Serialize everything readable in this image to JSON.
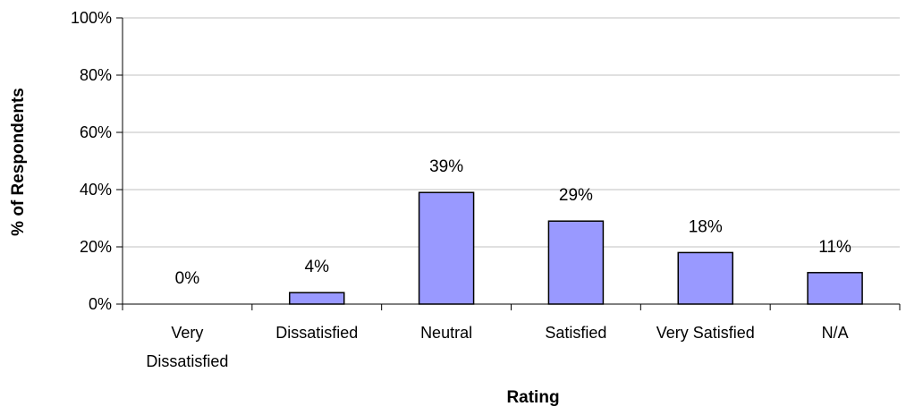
{
  "chart_data": {
    "type": "bar",
    "title": "",
    "xlabel": "Rating",
    "ylabel": "% of Respondents",
    "categories": [
      "Very Dissatisfied",
      "Dissatisfied",
      "Neutral",
      "Satisfied",
      "Very Satisfied",
      "N/A"
    ],
    "values": [
      0,
      4,
      39,
      29,
      18,
      11
    ],
    "data_labels": [
      "0%",
      "4%",
      "39%",
      "29%",
      "18%",
      "11%"
    ],
    "ylim": [
      0,
      100
    ],
    "y_ticks": [
      "0%",
      "20%",
      "40%",
      "60%",
      "80%",
      "100%"
    ],
    "grid": true,
    "legend": "none",
    "bar_color": "#9999ff",
    "bar_stroke": "#000000",
    "grid_color": "#c0c0c0"
  }
}
